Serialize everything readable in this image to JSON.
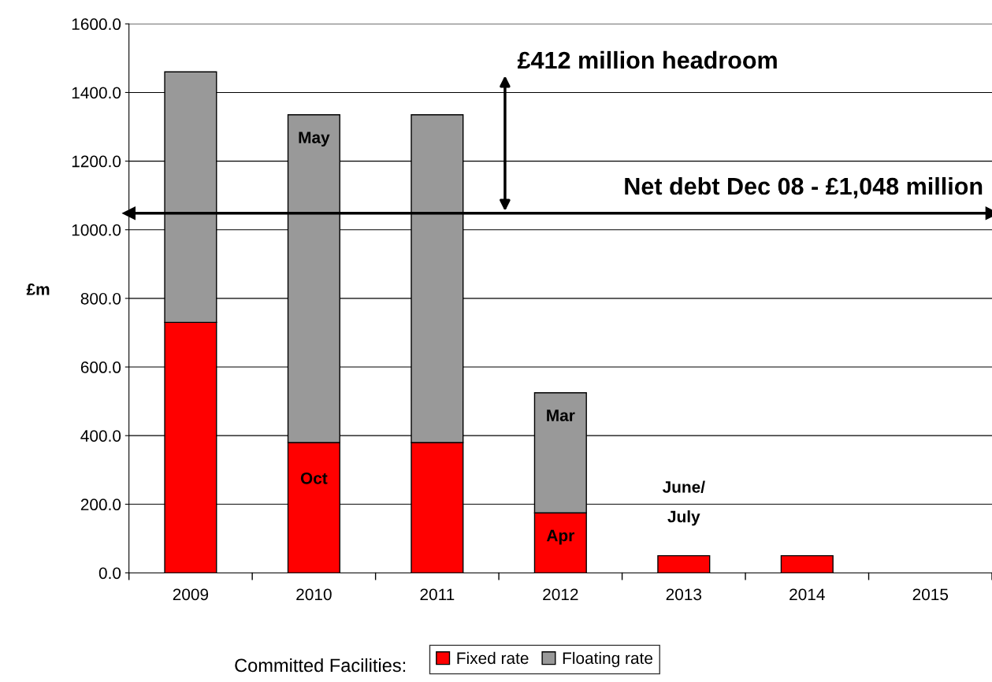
{
  "chart_data": {
    "type": "bar",
    "stacked": true,
    "ylabel": "£m",
    "legend_title": "Committed Facilities:",
    "categories": [
      "2009",
      "2010",
      "2011",
      "2012",
      "2013",
      "2014",
      "2015"
    ],
    "series": [
      {
        "name": "Fixed rate",
        "color": "#ff0000",
        "values": [
          730,
          380,
          380,
          175,
          50,
          50,
          0
        ]
      },
      {
        "name": "Floating rate",
        "color": "#999999",
        "values": [
          730,
          955,
          955,
          350,
          0,
          0,
          0
        ]
      }
    ],
    "ylim": [
      0,
      1600
    ],
    "yticks": [
      {
        "value": 0,
        "label": "0.0"
      },
      {
        "value": 200,
        "label": "200.0"
      },
      {
        "value": 400,
        "label": "400.0"
      },
      {
        "value": 600,
        "label": "600.0"
      },
      {
        "value": 800,
        "label": "800.0"
      },
      {
        "value": 1000,
        "label": "1000.0"
      },
      {
        "value": 1200,
        "label": "1200.0"
      },
      {
        "value": 1400,
        "label": "1400.0"
      },
      {
        "value": 1600,
        "label": "1600.0"
      }
    ],
    "grid": "y",
    "legend": "bottom",
    "ref_lines": [
      {
        "axis": "y",
        "value": 1048,
        "label": "Net debt Dec 08 - £1,048 million",
        "color": "#000000"
      }
    ],
    "annotations": [
      "£412 million headroom",
      {
        "text": "May",
        "x": "2010",
        "y": 1335
      },
      {
        "text": "Oct",
        "x": "2010",
        "y": 380
      },
      {
        "text": "Mar",
        "x": "2012",
        "y": 525
      },
      {
        "text": "Apr",
        "x": "2012",
        "y": 175
      },
      {
        "text": "June/\nJuly",
        "x": "2013",
        "y": 50
      }
    ]
  }
}
